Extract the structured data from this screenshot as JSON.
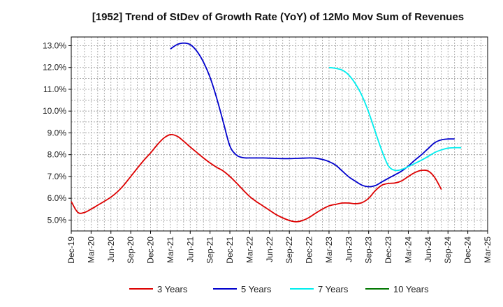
{
  "chart_data": {
    "type": "line",
    "title": "[1952]  Trend of StDev of Growth Rate (YoY) of 12Mo Mov Sum of Revenues",
    "xlabel": "",
    "ylabel": "",
    "ylim": [
      4.5,
      13.4
    ],
    "y_ticks": [
      5.0,
      6.0,
      7.0,
      8.0,
      9.0,
      10.0,
      11.0,
      12.0,
      13.0
    ],
    "y_tick_labels": [
      "5.0%",
      "6.0%",
      "7.0%",
      "8.0%",
      "9.0%",
      "10.0%",
      "11.0%",
      "12.0%",
      "13.0%"
    ],
    "x_range_months": [
      0,
      63
    ],
    "x_ticks": [
      0,
      3,
      6,
      9,
      12,
      15,
      18,
      21,
      24,
      27,
      30,
      33,
      36,
      39,
      42,
      45,
      48,
      51,
      54,
      57,
      60,
      63
    ],
    "x_tick_labels": [
      "Dec-19",
      "Mar-20",
      "Jun-20",
      "Sep-20",
      "Dec-20",
      "Mar-21",
      "Jun-21",
      "Sep-21",
      "Dec-21",
      "Mar-22",
      "Jun-22",
      "Sep-22",
      "Dec-22",
      "Mar-23",
      "Jun-23",
      "Sep-23",
      "Dec-23",
      "Mar-24",
      "Jun-24",
      "Sep-24",
      "Dec-24",
      "Mar-25"
    ],
    "grid": true,
    "legend_position": "bottom",
    "series": [
      {
        "name": "3 Years",
        "color": "#dd0000",
        "start_month": 0,
        "values": [
          5.85,
          5.35,
          5.35,
          5.5,
          5.68,
          5.86,
          6.05,
          6.3,
          6.62,
          7.0,
          7.38,
          7.75,
          8.08,
          8.45,
          8.76,
          8.92,
          8.85,
          8.62,
          8.35,
          8.1,
          7.85,
          7.62,
          7.42,
          7.25,
          7.0,
          6.7,
          6.38,
          6.08,
          5.85,
          5.65,
          5.45,
          5.25,
          5.1,
          4.98,
          4.92,
          4.98,
          5.12,
          5.32,
          5.5,
          5.65,
          5.72,
          5.78,
          5.78,
          5.75,
          5.8,
          6.0,
          6.35,
          6.6,
          6.68,
          6.7,
          6.8,
          7.0,
          7.18,
          7.28,
          7.25,
          6.95,
          6.4
        ]
      },
      {
        "name": "5 Years",
        "color": "#0000cc",
        "start_month": 15,
        "values": [
          12.85,
          13.05,
          13.12,
          13.05,
          12.75,
          12.25,
          11.55,
          10.6,
          9.5,
          8.4,
          7.98,
          7.86,
          7.85,
          7.85,
          7.85,
          7.84,
          7.83,
          7.82,
          7.82,
          7.83,
          7.84,
          7.85,
          7.84,
          7.78,
          7.68,
          7.52,
          7.25,
          6.98,
          6.78,
          6.6,
          6.53,
          6.58,
          6.75,
          6.92,
          7.08,
          7.25,
          7.48,
          7.75,
          8.0,
          8.28,
          8.55,
          8.68,
          8.72,
          8.72
        ]
      },
      {
        "name": "7 Years",
        "color": "#00eeee",
        "start_month": 39,
        "values": [
          12.0,
          11.96,
          11.88,
          11.65,
          11.25,
          10.7,
          9.95,
          9.05,
          8.18,
          7.48,
          7.28,
          7.32,
          7.45,
          7.6,
          7.75,
          7.92,
          8.1,
          8.22,
          8.3,
          8.32,
          8.32
        ]
      },
      {
        "name": "10 Years",
        "color": "#007700",
        "start_month": 0,
        "values": []
      }
    ]
  }
}
